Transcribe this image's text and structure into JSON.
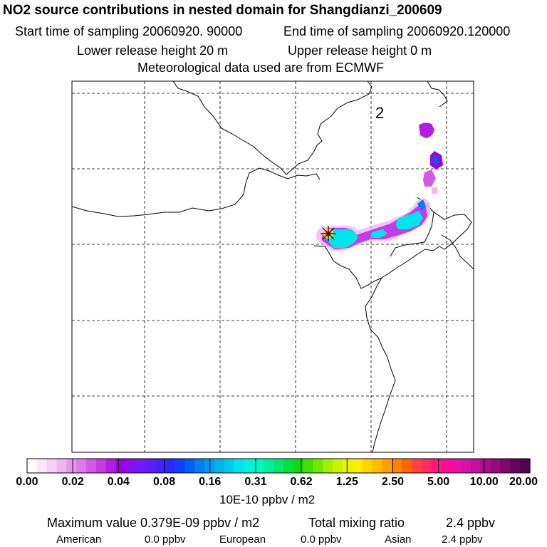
{
  "header": {
    "title": "NO2 source contributions in nested domain for Shangdianzi_200609",
    "start_time": "Start time of sampling 20060920. 90000",
    "end_time": "End time of sampling 20060920.120000",
    "lower_release": "Lower release height   20 m",
    "upper_release": "Upper release height    0 m",
    "met_data": "Meteorological data used are from ECMWF"
  },
  "map": {
    "region_label": "2",
    "source_marker": "Shangdianzi station"
  },
  "colorbar": {
    "tick_labels": [
      "0.00",
      "0.02",
      "0.04",
      "0.08",
      "0.16",
      "0.31",
      "0.62",
      "1.25",
      "2.50",
      "5.00",
      "10.00",
      "20.00"
    ],
    "colors": [
      "#ffffff",
      "#fbe6fb",
      "#f6cdf6",
      "#f0b4f0",
      "#e896ec",
      "#df78ea",
      "#d35ae8",
      "#c43ce6",
      "#b21ee4",
      "#9d00e2",
      "#8a10ee",
      "#7418f4",
      "#5d1ef8",
      "#4422fc",
      "#2a2afc",
      "#1040fa",
      "#0060f4",
      "#0080f0",
      "#009aee",
      "#00b4ea",
      "#00ccea",
      "#00e4ea",
      "#00f4e0",
      "#00f8c0",
      "#00f09a",
      "#00e870",
      "#00e040",
      "#10da10",
      "#40e000",
      "#70e800",
      "#a0f000",
      "#c8f400",
      "#e8f400",
      "#ffee00",
      "#ffd600",
      "#ffbe00",
      "#ffa000",
      "#ff8200",
      "#ff6400",
      "#ff4440",
      "#ff2c60",
      "#ff1680",
      "#f80c98",
      "#ea10a8",
      "#d812a8",
      "#c410a0",
      "#ac0c90",
      "#940a80",
      "#7c0870",
      "#640660",
      "#500450"
    ],
    "units": "10E-10 ppbv / m2"
  },
  "stats": {
    "max_value": "Maximum value  0.379E-09 ppbv / m2",
    "total_label": "Total mixing ratio",
    "total_value": "2.4 ppbv",
    "sources": [
      {
        "name": "American",
        "value": "0.0 ppbv"
      },
      {
        "name": "European",
        "value": "0.0 ppbv"
      },
      {
        "name": "Asian",
        "value": "2.4 ppbv"
      }
    ]
  }
}
